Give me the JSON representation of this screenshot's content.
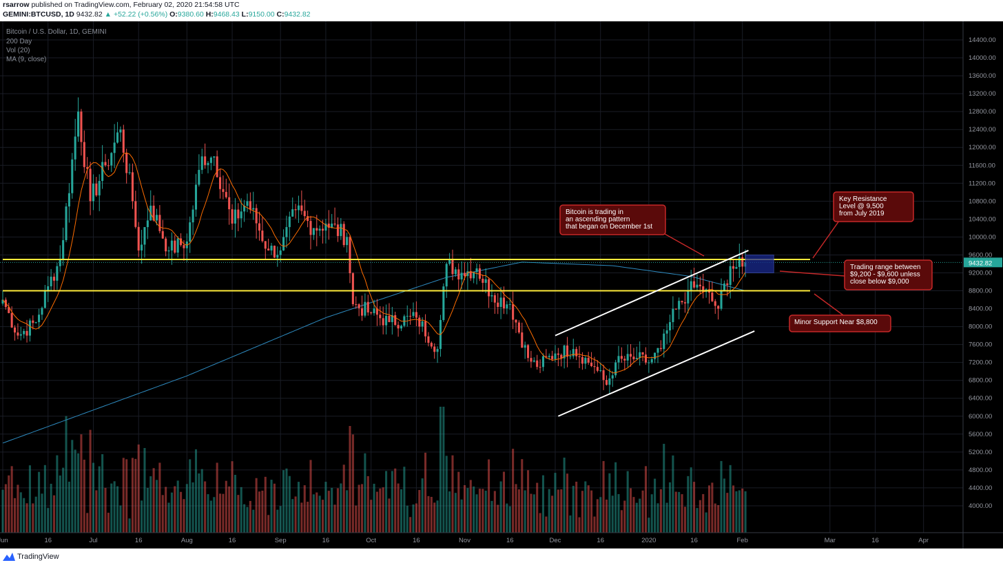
{
  "header": {
    "author": "rsarrow",
    "published_text": "published on TradingView.com, February 02, 2020 21:54:58 UTC",
    "symbol": "GEMINI:BTCUSD, 1D",
    "last": "9432.82",
    "change": "▲ +52.22 (+0.56%)",
    "o_label": "O:",
    "o_val": "9380.60",
    "h_label": "H:",
    "h_val": "9468.43",
    "l_label": "L:",
    "l_val": "9150.00",
    "c_label": "C:",
    "c_val": "9432.82"
  },
  "legend": {
    "title": "Bitcoin / U.S. Dollar, 1D, GEMINI",
    "line2": "200 Day",
    "line3": "Vol (20)",
    "line4": "MA (9, close)"
  },
  "footer": {
    "brand": "TradingView"
  },
  "colors": {
    "up": "#26a69a",
    "down": "#ef5350",
    "ma9": "#ff6d00",
    "ma200": "#2e8bc0",
    "level": "#ffeb3b",
    "channel": "#ffffff",
    "callout_bg": "#5a0a0a",
    "callout_border": "#c62828",
    "price_tag": "#26a69a",
    "zone": "#1a2a8f"
  },
  "chart_data": {
    "type": "candlestick",
    "title": "Bitcoin / U.S. Dollar, 1D, GEMINI",
    "x_range": [
      "2019-06-01",
      "2020-04-15"
    ],
    "y_range": [
      3400,
      14600
    ],
    "y_ticks": [
      4000,
      4400,
      4800,
      5200,
      5600,
      6000,
      6400,
      6800,
      7200,
      7600,
      8000,
      8400,
      8800,
      9200,
      9600,
      10000,
      10400,
      10800,
      11200,
      11600,
      12000,
      12400,
      12800,
      13200,
      13600,
      14000,
      14400
    ],
    "x_ticks": [
      {
        "date": "2019-06-01",
        "label": "Jun"
      },
      {
        "date": "2019-06-16",
        "label": "16"
      },
      {
        "date": "2019-07-01",
        "label": "Jul"
      },
      {
        "date": "2019-07-16",
        "label": "16"
      },
      {
        "date": "2019-08-01",
        "label": "Aug"
      },
      {
        "date": "2019-08-16",
        "label": "16"
      },
      {
        "date": "2019-09-01",
        "label": "Sep"
      },
      {
        "date": "2019-09-16",
        "label": "16"
      },
      {
        "date": "2019-10-01",
        "label": "Oct"
      },
      {
        "date": "2019-10-16",
        "label": "16"
      },
      {
        "date": "2019-11-01",
        "label": "Nov"
      },
      {
        "date": "2019-11-16",
        "label": "16"
      },
      {
        "date": "2019-12-01",
        "label": "Dec"
      },
      {
        "date": "2019-12-16",
        "label": "16"
      },
      {
        "date": "2020-01-01",
        "label": "2020"
      },
      {
        "date": "2020-01-16",
        "label": "16"
      },
      {
        "date": "2020-02-01",
        "label": "Feb"
      },
      {
        "date": "2020-03-01",
        "label": "Mar"
      },
      {
        "date": "2020-03-16",
        "label": "16"
      },
      {
        "date": "2020-04-01",
        "label": "Apr"
      }
    ],
    "closes_anchors": [
      [
        "2019-06-01",
        8600
      ],
      [
        "2019-06-06",
        7800
      ],
      [
        "2019-06-12",
        8100
      ],
      [
        "2019-06-16",
        8900
      ],
      [
        "2019-06-20",
        9500
      ],
      [
        "2019-06-26",
        12800
      ],
      [
        "2019-06-30",
        10800
      ],
      [
        "2019-07-05",
        11600
      ],
      [
        "2019-07-10",
        12400
      ],
      [
        "2019-07-14",
        10800
      ],
      [
        "2019-07-16",
        9700
      ],
      [
        "2019-07-20",
        10700
      ],
      [
        "2019-07-26",
        9700
      ],
      [
        "2019-08-01",
        9900
      ],
      [
        "2019-08-06",
        11800
      ],
      [
        "2019-08-10",
        11800
      ],
      [
        "2019-08-16",
        10300
      ],
      [
        "2019-08-21",
        10800
      ],
      [
        "2019-08-28",
        9700
      ],
      [
        "2019-09-01",
        9700
      ],
      [
        "2019-09-06",
        10600
      ],
      [
        "2019-09-12",
        10200
      ],
      [
        "2019-09-16",
        10300
      ],
      [
        "2019-09-23",
        10000
      ],
      [
        "2019-09-25",
        8500
      ],
      [
        "2019-10-01",
        8300
      ],
      [
        "2019-10-07",
        8100
      ],
      [
        "2019-10-16",
        8200
      ],
      [
        "2019-10-23",
        7500
      ],
      [
        "2019-10-26",
        9400
      ],
      [
        "2019-10-31",
        9200
      ],
      [
        "2019-11-05",
        9300
      ],
      [
        "2019-11-10",
        8700
      ],
      [
        "2019-11-16",
        8500
      ],
      [
        "2019-11-22",
        7300
      ],
      [
        "2019-11-25",
        7100
      ],
      [
        "2019-12-01",
        7400
      ],
      [
        "2019-12-07",
        7500
      ],
      [
        "2019-12-14",
        7100
      ],
      [
        "2019-12-18",
        6700
      ],
      [
        "2019-12-21",
        7200
      ],
      [
        "2019-12-28",
        7300
      ],
      [
        "2020-01-01",
        7200
      ],
      [
        "2020-01-05",
        7500
      ],
      [
        "2020-01-08",
        8100
      ],
      [
        "2020-01-14",
        8800
      ],
      [
        "2020-01-18",
        8900
      ],
      [
        "2020-01-24",
        8400
      ],
      [
        "2020-01-28",
        9350
      ],
      [
        "2020-02-01",
        9340
      ],
      [
        "2020-02-02",
        9432.82
      ]
    ],
    "current_price": 9432.82,
    "horizontal_levels": [
      9500,
      8800
    ],
    "channel_upper": [
      [
        "2019-12-01",
        7800
      ],
      [
        "2020-02-03",
        9700
      ]
    ],
    "channel_lower": [
      [
        "2019-12-02",
        6000
      ],
      [
        "2020-02-05",
        7900
      ]
    ],
    "resistance_zone": {
      "from": "2020-02-02",
      "to": "2020-02-05",
      "low": 9200,
      "high": 9600
    },
    "volume_max": 80000
  },
  "annotations": [
    {
      "id": "callout-ascending",
      "lines": [
        "Bitcoin is trading in",
        "an ascending pattern",
        "that began on December 1st"
      ]
    },
    {
      "id": "callout-resistance",
      "lines": [
        "Key Resistance",
        "Level @ 9,500",
        "from July 2019"
      ]
    },
    {
      "id": "callout-range",
      "lines": [
        "Trading range between",
        "$9,200 - $9,600 unless",
        "close below $9,000"
      ]
    },
    {
      "id": "callout-support",
      "lines": [
        "Minor Support Near $8,800"
      ]
    }
  ]
}
